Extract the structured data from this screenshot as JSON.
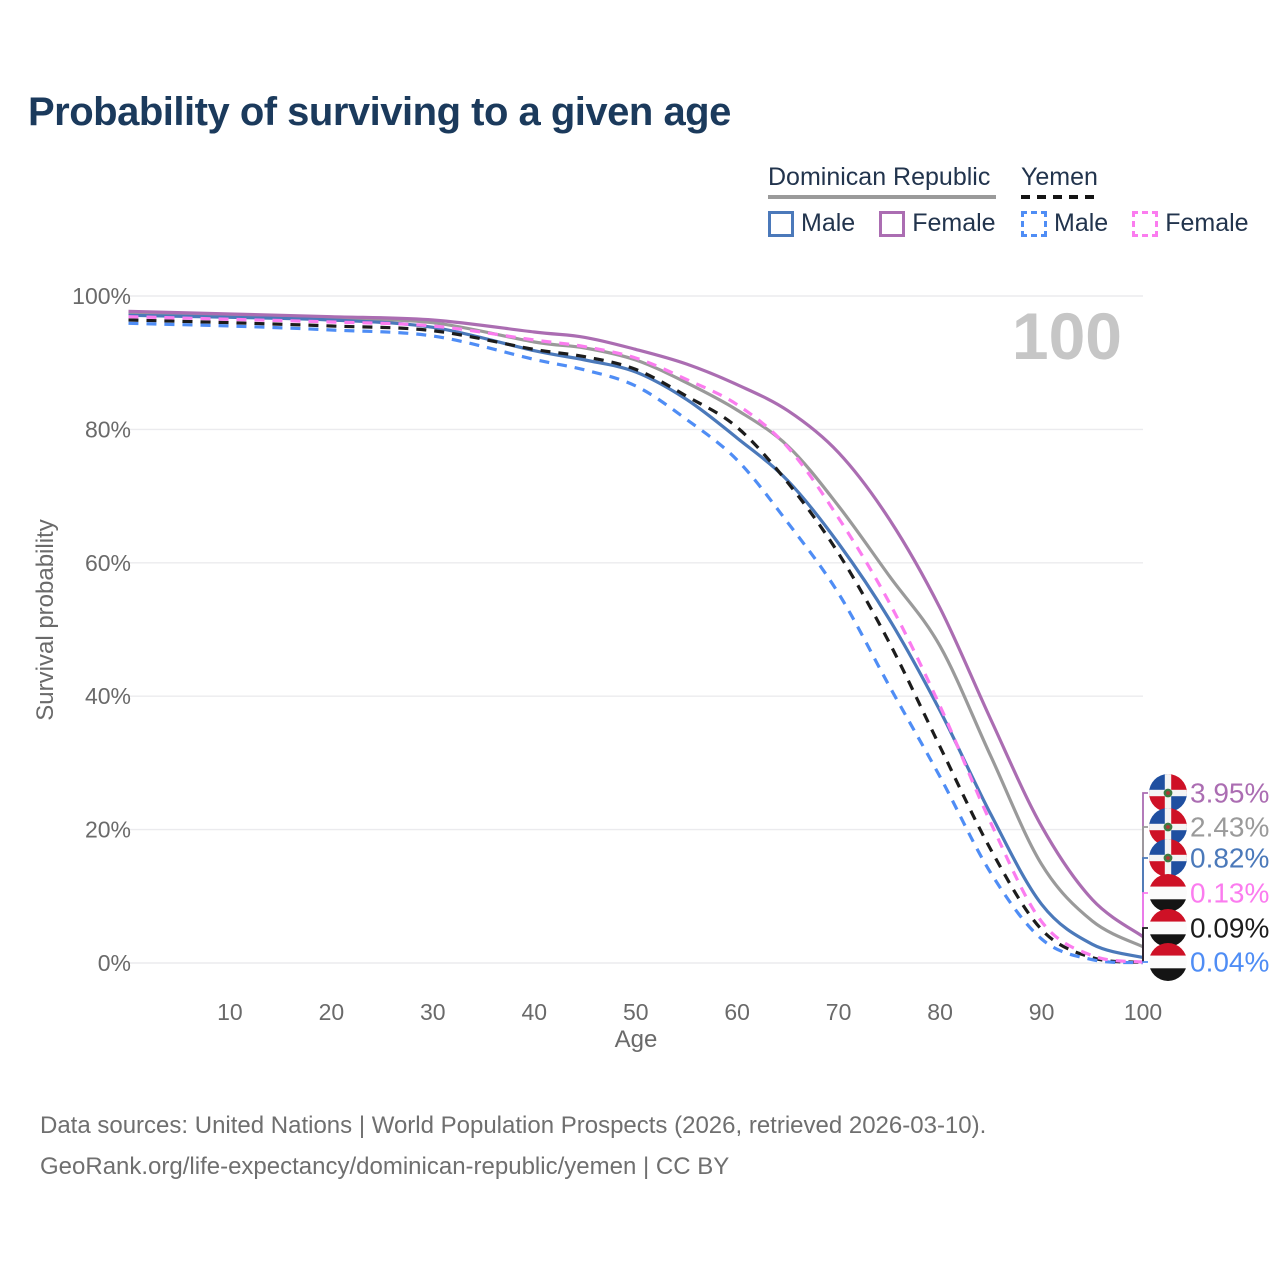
{
  "header": {
    "title": "Probability of surviving to a given age"
  },
  "legend": {
    "groups": [
      {
        "label": "Dominican Republic",
        "line_style": "solid",
        "line_color": "#9a9a9a",
        "items": [
          {
            "label": "Male",
            "color": "#4b79ba",
            "style": "solid"
          },
          {
            "label": "Female",
            "color": "#ab6db2",
            "style": "solid"
          }
        ]
      },
      {
        "label": "Yemen",
        "line_style": "dashed",
        "line_color": "#141414",
        "items": [
          {
            "label": "Male",
            "color": "#4f8df5",
            "style": "dashed"
          },
          {
            "label": "Female",
            "color": "#fb7cef",
            "style": "dashed"
          }
        ]
      }
    ]
  },
  "chart_data": {
    "type": "line",
    "title": "Probability of surviving to a given age",
    "xlabel": "Age",
    "ylabel": "Survival probability",
    "xlim": [
      0,
      100
    ],
    "ylim": [
      0,
      100
    ],
    "grid": "horizontal",
    "legend_position": "top-right",
    "age_indicator": "100",
    "x_ticks": [
      10,
      20,
      30,
      40,
      50,
      60,
      70,
      80,
      90,
      100
    ],
    "y_ticks": [
      "0%",
      "20%",
      "40%",
      "60%",
      "80%",
      "100%"
    ],
    "x": [
      0,
      10,
      20,
      30,
      40,
      45,
      50,
      55,
      60,
      65,
      70,
      75,
      80,
      85,
      90,
      95,
      100
    ],
    "series": [
      {
        "name": "Dominican Republic — Female",
        "slug": "dr-female",
        "flag": "dominican-republic",
        "color": "#ab6db2",
        "style": "solid",
        "end_label": "3.95%",
        "values": [
          97.7,
          97.3,
          96.9,
          96.4,
          94.6,
          93.8,
          92.0,
          89.8,
          86.7,
          82.8,
          76.5,
          66.5,
          53.2,
          36.5,
          20.5,
          9.5,
          3.95
        ]
      },
      {
        "name": "Dominican Republic — Total",
        "slug": "dr-total",
        "flag": "dominican-republic",
        "color": "#9a9a9a",
        "style": "solid",
        "end_label": "2.43%",
        "values": [
          97.4,
          97.0,
          96.6,
          96.0,
          93.1,
          92.2,
          90.4,
          87.0,
          82.9,
          77.5,
          68.5,
          58.0,
          47.5,
          31.0,
          14.8,
          6.3,
          2.43
        ]
      },
      {
        "name": "Dominican Republic — Male",
        "slug": "dr-male",
        "flag": "dominican-republic",
        "color": "#4b79ba",
        "style": "solid",
        "end_label": "0.82%",
        "values": [
          97.1,
          96.8,
          96.4,
          95.3,
          91.8,
          90.4,
          88.6,
          84.5,
          78.7,
          72.3,
          62.9,
          51.5,
          37.8,
          22.3,
          8.8,
          2.8,
          0.82
        ]
      },
      {
        "name": "Yemen — Female",
        "slug": "yemen-female",
        "flag": "yemen",
        "color": "#fb7cef",
        "style": "dashed",
        "end_label": "0.13%",
        "values": [
          96.9,
          96.5,
          96.1,
          95.5,
          93.4,
          92.4,
          90.7,
          87.5,
          83.7,
          77.3,
          66.7,
          54.0,
          38.5,
          21.0,
          6.2,
          1.1,
          0.13
        ]
      },
      {
        "name": "Yemen — Total",
        "slug": "yemen-total",
        "flag": "yemen",
        "color": "#1c1c1c",
        "style": "dashed",
        "end_label": "0.09%",
        "values": [
          96.4,
          96.0,
          95.5,
          94.8,
          92.0,
          90.9,
          89.0,
          85.0,
          80.3,
          72.0,
          61.4,
          48.0,
          32.4,
          17.0,
          5.0,
          0.8,
          0.09
        ]
      },
      {
        "name": "Yemen — Male",
        "slug": "yemen-male",
        "flag": "yemen",
        "color": "#4f8df5",
        "style": "dashed",
        "end_label": "0.04%",
        "values": [
          95.9,
          95.5,
          94.9,
          94.0,
          90.5,
          88.9,
          86.5,
          81.5,
          75.4,
          66.0,
          55.4,
          41.5,
          27.9,
          13.5,
          3.6,
          0.5,
          0.04
        ]
      }
    ]
  },
  "footer": {
    "line1": "Data sources: United Nations | World Population Prospects (2026, retrieved 2026-03-10).",
    "line2": "GeoRank.org/life-expectancy/dominican-republic/yemen | CC BY"
  }
}
